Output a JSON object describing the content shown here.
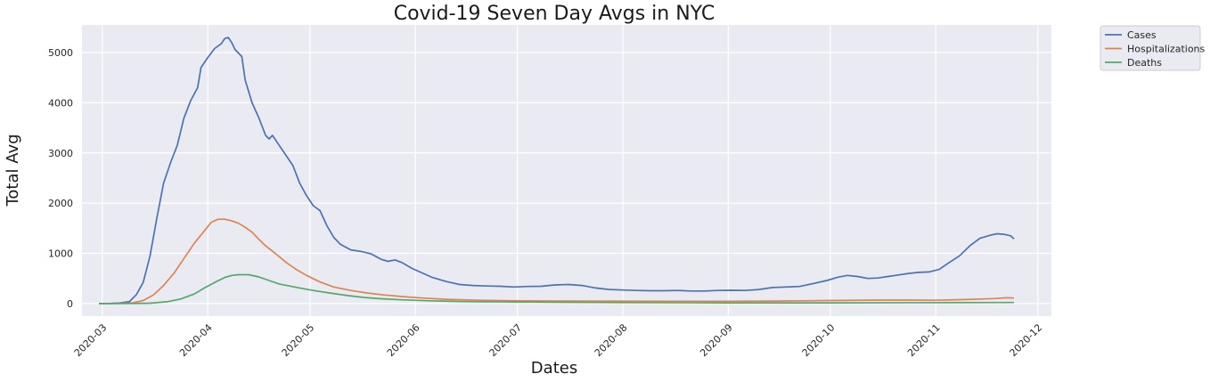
{
  "chart_data": {
    "type": "line",
    "title": "Covid-19 Seven Day Avgs in NYC",
    "xlabel": "Dates",
    "ylabel": "Total Avg",
    "xlim": [
      "2020-02-24",
      "2020-12-05"
    ],
    "ylim": [
      -250,
      5550
    ],
    "yticks": [
      0,
      1000,
      2000,
      3000,
      4000,
      5000
    ],
    "xticks": [
      "2020-03-01",
      "2020-04-01",
      "2020-05-01",
      "2020-06-01",
      "2020-07-01",
      "2020-08-01",
      "2020-09-01",
      "2020-10-01",
      "2020-11-01",
      "2020-12-01"
    ],
    "xtick_labels": [
      "2020-03",
      "2020-04",
      "2020-05",
      "2020-06",
      "2020-07",
      "2020-08",
      "2020-09",
      "2020-10",
      "2020-11",
      "2020-12"
    ],
    "grid": true,
    "background": "#eaeaf2",
    "legend_position": "outside-top-right",
    "series": [
      {
        "name": "Cases",
        "color": "#4c72b0",
        "points": [
          [
            "2020-02-29",
            0
          ],
          [
            "2020-03-03",
            2
          ],
          [
            "2020-03-06",
            10
          ],
          [
            "2020-03-09",
            40
          ],
          [
            "2020-03-11",
            180
          ],
          [
            "2020-03-13",
            420
          ],
          [
            "2020-03-15",
            950
          ],
          [
            "2020-03-17",
            1700
          ],
          [
            "2020-03-19",
            2400
          ],
          [
            "2020-03-21",
            2800
          ],
          [
            "2020-03-23",
            3150
          ],
          [
            "2020-03-25",
            3700
          ],
          [
            "2020-03-27",
            4050
          ],
          [
            "2020-03-29",
            4300
          ],
          [
            "2020-03-30",
            4700
          ],
          [
            "2020-04-01",
            4900
          ],
          [
            "2020-04-03",
            5080
          ],
          [
            "2020-04-05",
            5180
          ],
          [
            "2020-04-06",
            5280
          ],
          [
            "2020-04-07",
            5300
          ],
          [
            "2020-04-08",
            5200
          ],
          [
            "2020-04-09",
            5060
          ],
          [
            "2020-04-11",
            4920
          ],
          [
            "2020-04-12",
            4450
          ],
          [
            "2020-04-14",
            4000
          ],
          [
            "2020-04-16",
            3700
          ],
          [
            "2020-04-18",
            3350
          ],
          [
            "2020-04-19",
            3280
          ],
          [
            "2020-04-20",
            3350
          ],
          [
            "2020-04-22",
            3150
          ],
          [
            "2020-04-24",
            2950
          ],
          [
            "2020-04-26",
            2750
          ],
          [
            "2020-04-28",
            2400
          ],
          [
            "2020-04-30",
            2150
          ],
          [
            "2020-05-02",
            1950
          ],
          [
            "2020-05-04",
            1850
          ],
          [
            "2020-05-06",
            1550
          ],
          [
            "2020-05-08",
            1320
          ],
          [
            "2020-05-10",
            1180
          ],
          [
            "2020-05-13",
            1070
          ],
          [
            "2020-05-16",
            1040
          ],
          [
            "2020-05-19",
            990
          ],
          [
            "2020-05-22",
            880
          ],
          [
            "2020-05-24",
            840
          ],
          [
            "2020-05-26",
            870
          ],
          [
            "2020-05-28",
            820
          ],
          [
            "2020-05-31",
            700
          ],
          [
            "2020-06-03",
            610
          ],
          [
            "2020-06-06",
            520
          ],
          [
            "2020-06-10",
            440
          ],
          [
            "2020-06-14",
            380
          ],
          [
            "2020-06-18",
            360
          ],
          [
            "2020-06-22",
            350
          ],
          [
            "2020-06-26",
            345
          ],
          [
            "2020-06-30",
            330
          ],
          [
            "2020-07-04",
            340
          ],
          [
            "2020-07-08",
            345
          ],
          [
            "2020-07-12",
            370
          ],
          [
            "2020-07-16",
            380
          ],
          [
            "2020-07-20",
            360
          ],
          [
            "2020-07-24",
            310
          ],
          [
            "2020-07-28",
            280
          ],
          [
            "2020-08-01",
            270
          ],
          [
            "2020-08-05",
            260
          ],
          [
            "2020-08-09",
            255
          ],
          [
            "2020-08-13",
            255
          ],
          [
            "2020-08-17",
            260
          ],
          [
            "2020-08-21",
            250
          ],
          [
            "2020-08-25",
            250
          ],
          [
            "2020-08-29",
            260
          ],
          [
            "2020-09-02",
            265
          ],
          [
            "2020-09-06",
            260
          ],
          [
            "2020-09-10",
            280
          ],
          [
            "2020-09-14",
            320
          ],
          [
            "2020-09-18",
            330
          ],
          [
            "2020-09-22",
            340
          ],
          [
            "2020-09-26",
            400
          ],
          [
            "2020-09-30",
            460
          ],
          [
            "2020-10-03",
            520
          ],
          [
            "2020-10-06",
            560
          ],
          [
            "2020-10-09",
            540
          ],
          [
            "2020-10-12",
            500
          ],
          [
            "2020-10-15",
            510
          ],
          [
            "2020-10-18",
            540
          ],
          [
            "2020-10-21",
            570
          ],
          [
            "2020-10-24",
            600
          ],
          [
            "2020-10-27",
            620
          ],
          [
            "2020-10-30",
            630
          ],
          [
            "2020-11-02",
            680
          ],
          [
            "2020-11-05",
            820
          ],
          [
            "2020-11-08",
            950
          ],
          [
            "2020-11-11",
            1150
          ],
          [
            "2020-11-14",
            1300
          ],
          [
            "2020-11-17",
            1360
          ],
          [
            "2020-11-19",
            1390
          ],
          [
            "2020-11-21",
            1380
          ],
          [
            "2020-11-23",
            1350
          ],
          [
            "2020-11-24",
            1290
          ]
        ]
      },
      {
        "name": "Hospitalizations",
        "color": "#dd8452",
        "points": [
          [
            "2020-02-29",
            0
          ],
          [
            "2020-03-05",
            2
          ],
          [
            "2020-03-10",
            15
          ],
          [
            "2020-03-13",
            60
          ],
          [
            "2020-03-16",
            170
          ],
          [
            "2020-03-19",
            360
          ],
          [
            "2020-03-22",
            600
          ],
          [
            "2020-03-25",
            900
          ],
          [
            "2020-03-28",
            1200
          ],
          [
            "2020-03-31",
            1450
          ],
          [
            "2020-04-02",
            1620
          ],
          [
            "2020-04-04",
            1680
          ],
          [
            "2020-04-06",
            1680
          ],
          [
            "2020-04-08",
            1650
          ],
          [
            "2020-04-10",
            1600
          ],
          [
            "2020-04-12",
            1520
          ],
          [
            "2020-04-14",
            1420
          ],
          [
            "2020-04-16",
            1280
          ],
          [
            "2020-04-18",
            1150
          ],
          [
            "2020-04-21",
            990
          ],
          [
            "2020-04-24",
            820
          ],
          [
            "2020-04-27",
            680
          ],
          [
            "2020-04-30",
            560
          ],
          [
            "2020-05-04",
            430
          ],
          [
            "2020-05-08",
            330
          ],
          [
            "2020-05-13",
            260
          ],
          [
            "2020-05-18",
            210
          ],
          [
            "2020-05-23",
            170
          ],
          [
            "2020-05-28",
            140
          ],
          [
            "2020-06-03",
            110
          ],
          [
            "2020-06-10",
            85
          ],
          [
            "2020-06-20",
            65
          ],
          [
            "2020-07-01",
            55
          ],
          [
            "2020-07-15",
            50
          ],
          [
            "2020-08-01",
            48
          ],
          [
            "2020-08-15",
            46
          ],
          [
            "2020-09-01",
            45
          ],
          [
            "2020-09-15",
            50
          ],
          [
            "2020-10-01",
            60
          ],
          [
            "2020-10-15",
            70
          ],
          [
            "2020-10-25",
            70
          ],
          [
            "2020-11-01",
            65
          ],
          [
            "2020-11-10",
            80
          ],
          [
            "2020-11-18",
            100
          ],
          [
            "2020-11-22",
            115
          ],
          [
            "2020-11-24",
            110
          ]
        ]
      },
      {
        "name": "Deaths",
        "color": "#55a868",
        "points": [
          [
            "2020-02-29",
            0
          ],
          [
            "2020-03-10",
            1
          ],
          [
            "2020-03-15",
            8
          ],
          [
            "2020-03-20",
            35
          ],
          [
            "2020-03-24",
            90
          ],
          [
            "2020-03-28",
            190
          ],
          [
            "2020-03-31",
            310
          ],
          [
            "2020-04-03",
            420
          ],
          [
            "2020-04-06",
            520
          ],
          [
            "2020-04-08",
            560
          ],
          [
            "2020-04-10",
            575
          ],
          [
            "2020-04-13",
            575
          ],
          [
            "2020-04-16",
            530
          ],
          [
            "2020-04-19",
            460
          ],
          [
            "2020-04-22",
            390
          ],
          [
            "2020-04-25",
            350
          ],
          [
            "2020-04-28",
            310
          ],
          [
            "2020-05-02",
            260
          ],
          [
            "2020-05-07",
            210
          ],
          [
            "2020-05-12",
            160
          ],
          [
            "2020-05-17",
            120
          ],
          [
            "2020-05-22",
            95
          ],
          [
            "2020-05-28",
            75
          ],
          [
            "2020-06-05",
            55
          ],
          [
            "2020-06-15",
            40
          ],
          [
            "2020-07-01",
            30
          ],
          [
            "2020-07-15",
            25
          ],
          [
            "2020-08-01",
            20
          ],
          [
            "2020-09-01",
            15
          ],
          [
            "2020-10-01",
            15
          ],
          [
            "2020-11-01",
            18
          ],
          [
            "2020-11-24",
            22
          ]
        ]
      }
    ]
  }
}
